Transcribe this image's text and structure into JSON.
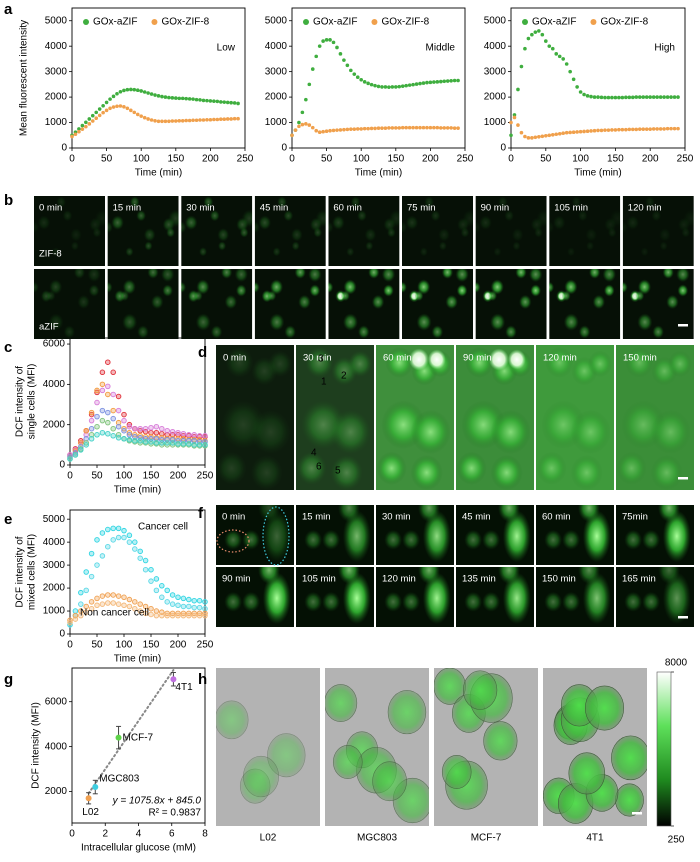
{
  "panel_letters": [
    "a",
    "b",
    "c",
    "d",
    "e",
    "f",
    "g",
    "h"
  ],
  "chart_data": [
    {
      "type": "scatter",
      "marker": "filled",
      "legend": "top",
      "annotation": "Low",
      "ylabel": [
        "Mean fluorescent intensity"
      ],
      "xlabel": "Time (min)",
      "xlim": [
        0,
        250
      ],
      "ylim": [
        0,
        5500
      ],
      "xticks": [
        0,
        50,
        100,
        150,
        200,
        250
      ],
      "yticks": [
        0,
        1000,
        2000,
        3000,
        4000,
        5000
      ],
      "x": [
        0,
        5,
        10,
        15,
        20,
        25,
        30,
        35,
        40,
        45,
        50,
        55,
        60,
        65,
        70,
        75,
        80,
        85,
        90,
        95,
        100,
        105,
        110,
        115,
        120,
        125,
        130,
        135,
        140,
        145,
        150,
        155,
        160,
        165,
        170,
        175,
        180,
        185,
        190,
        195,
        200,
        205,
        210,
        215,
        220,
        225,
        230,
        235,
        240
      ],
      "series": [
        {
          "name": "GOx-aZIF",
          "color": "#3fae3f",
          "values": [
            500,
            620,
            750,
            880,
            1010,
            1140,
            1270,
            1400,
            1530,
            1660,
            1790,
            1920,
            2030,
            2130,
            2210,
            2260,
            2290,
            2300,
            2290,
            2270,
            2240,
            2200,
            2160,
            2120,
            2080,
            2050,
            2020,
            2000,
            1980,
            1970,
            1960,
            1950,
            1950,
            1940,
            1930,
            1920,
            1900,
            1890,
            1870,
            1860,
            1850,
            1840,
            1830,
            1810,
            1800,
            1790,
            1780,
            1770,
            1750
          ]
        },
        {
          "name": "GOx-ZIF-8",
          "color": "#f0a04c",
          "values": [
            450,
            540,
            640,
            740,
            840,
            950,
            1060,
            1170,
            1280,
            1390,
            1480,
            1560,
            1610,
            1640,
            1650,
            1620,
            1560,
            1480,
            1400,
            1320,
            1250,
            1190,
            1140,
            1100,
            1070,
            1050,
            1050,
            1050,
            1050,
            1060,
            1060,
            1070,
            1070,
            1080,
            1080,
            1090,
            1090,
            1100,
            1100,
            1110,
            1110,
            1120,
            1120,
            1130,
            1130,
            1140,
            1140,
            1150,
            1150
          ]
        }
      ]
    },
    {
      "type": "scatter",
      "marker": "filled",
      "legend": "top",
      "annotation": "Middle",
      "xlabel": "Time (min)",
      "xlim": [
        0,
        250
      ],
      "ylim": [
        0,
        5500
      ],
      "xticks": [
        0,
        50,
        100,
        150,
        200,
        250
      ],
      "yticks": [
        0,
        1000,
        2000,
        3000,
        4000,
        5000
      ],
      "x": [
        0,
        5,
        10,
        15,
        20,
        25,
        30,
        35,
        40,
        45,
        50,
        55,
        60,
        65,
        70,
        75,
        80,
        85,
        90,
        95,
        100,
        105,
        110,
        115,
        120,
        125,
        130,
        135,
        140,
        145,
        150,
        155,
        160,
        165,
        170,
        175,
        180,
        185,
        190,
        195,
        200,
        205,
        210,
        215,
        220,
        225,
        230,
        235,
        240
      ],
      "series": [
        {
          "name": "GOx-aZIF",
          "color": "#3fae3f",
          "values": [
            500,
            700,
            1000,
            1400,
            1900,
            2500,
            3100,
            3600,
            4000,
            4200,
            4250,
            4250,
            4150,
            3950,
            3700,
            3450,
            3250,
            3050,
            2900,
            2780,
            2680,
            2600,
            2540,
            2490,
            2450,
            2420,
            2400,
            2400,
            2390,
            2400,
            2400,
            2410,
            2430,
            2450,
            2470,
            2490,
            2510,
            2530,
            2550,
            2570,
            2580,
            2590,
            2600,
            2610,
            2620,
            2630,
            2640,
            2650,
            2650
          ]
        },
        {
          "name": "GOx-ZIF-8",
          "color": "#f0a04c",
          "values": [
            500,
            700,
            850,
            920,
            950,
            900,
            800,
            680,
            620,
            640,
            660,
            680,
            690,
            700,
            710,
            720,
            730,
            740,
            740,
            750,
            750,
            760,
            760,
            770,
            770,
            780,
            780,
            780,
            790,
            790,
            790,
            790,
            800,
            800,
            800,
            800,
            800,
            800,
            800,
            800,
            800,
            800,
            800,
            790,
            790,
            790,
            790,
            780,
            780
          ]
        }
      ]
    },
    {
      "type": "scatter",
      "marker": "filled",
      "legend": "top",
      "annotation": "High",
      "xlabel": "Time (min)",
      "xlim": [
        0,
        250
      ],
      "ylim": [
        0,
        5500
      ],
      "xticks": [
        0,
        50,
        100,
        150,
        200,
        250
      ],
      "yticks": [
        0,
        1000,
        2000,
        3000,
        4000,
        5000
      ],
      "x": [
        0,
        5,
        10,
        15,
        20,
        25,
        30,
        35,
        40,
        45,
        50,
        55,
        60,
        65,
        70,
        75,
        80,
        85,
        90,
        95,
        100,
        105,
        110,
        115,
        120,
        125,
        130,
        135,
        140,
        145,
        150,
        155,
        160,
        165,
        170,
        175,
        180,
        185,
        190,
        195,
        200,
        205,
        210,
        215,
        220,
        225,
        230,
        235,
        240
      ],
      "series": [
        {
          "name": "GOx-aZIF",
          "color": "#3fae3f",
          "values": [
            500,
            1300,
            2300,
            3200,
            3900,
            4300,
            4450,
            4550,
            4600,
            4450,
            4200,
            4000,
            3900,
            3700,
            3600,
            3500,
            3300,
            3000,
            2700,
            2400,
            2200,
            2100,
            2050,
            2020,
            2000,
            2000,
            1990,
            1980,
            1980,
            1980,
            1980,
            1980,
            1980,
            1990,
            1990,
            1990,
            2000,
            2000,
            2000,
            2000,
            2000,
            2000,
            2000,
            2000,
            2000,
            2000,
            2000,
            2000,
            2000
          ]
        },
        {
          "name": "GOx-ZIF-8",
          "color": "#f0a04c",
          "values": [
            1000,
            1200,
            900,
            600,
            450,
            400,
            400,
            420,
            440,
            460,
            480,
            500,
            520,
            540,
            560,
            580,
            600,
            610,
            620,
            630,
            640,
            650,
            660,
            670,
            680,
            690,
            690,
            700,
            700,
            710,
            710,
            720,
            720,
            720,
            730,
            730,
            730,
            740,
            740,
            740,
            740,
            750,
            750,
            750,
            750,
            760,
            760,
            760,
            760
          ]
        }
      ]
    },
    {
      "type": "scatter",
      "marker": "open",
      "ylabel": [
        "DCF intensity of",
        "single cells (MFI)"
      ],
      "xlabel": "Time (min)",
      "xlim": [
        0,
        250
      ],
      "ylim": [
        0,
        6300
      ],
      "xticks": [
        0,
        50,
        100,
        150,
        200,
        250
      ],
      "yticks": [
        0,
        2000,
        4000,
        6000
      ],
      "x": [
        0,
        10,
        20,
        30,
        40,
        50,
        60,
        70,
        80,
        90,
        100,
        110,
        120,
        130,
        140,
        150,
        160,
        170,
        180,
        190,
        200,
        210,
        220,
        230,
        240,
        250
      ],
      "series": [
        {
          "color": "#e0303a",
          "values": [
            500,
            800,
            1200,
            1700,
            2500,
            3600,
            4600,
            5100,
            4600,
            3400,
            2500,
            2000,
            1800,
            1700,
            1650,
            1600,
            1600,
            1550,
            1500,
            1500,
            1500,
            1450,
            1450,
            1400,
            1400,
            1400
          ]
        },
        {
          "color": "#d77ad8",
          "values": [
            500,
            750,
            1100,
            1500,
            2200,
            3100,
            3700,
            3900,
            3500,
            2700,
            2200,
            1900,
            1800,
            1800,
            1800,
            1850,
            1900,
            1800,
            1700,
            1650,
            1600,
            1550,
            1500,
            1500,
            1450,
            1450
          ]
        },
        {
          "color": "#f29a3c",
          "values": [
            400,
            700,
            1100,
            1700,
            2600,
            3700,
            4000,
            3500,
            2700,
            2100,
            1800,
            1600,
            1500,
            1450,
            1400,
            1400,
            1350,
            1350,
            1300,
            1300,
            1300,
            1300,
            1250,
            1250,
            1250,
            1200
          ]
        },
        {
          "color": "#7a8fe0",
          "values": [
            400,
            600,
            900,
            1300,
            1800,
            2400,
            2700,
            2600,
            2300,
            1900,
            1700,
            1500,
            1400,
            1350,
            1300,
            1300,
            1300,
            1250,
            1250,
            1250,
            1200,
            1200,
            1200,
            1200,
            1150,
            1150
          ]
        },
        {
          "color": "#7fc27a",
          "values": [
            300,
            500,
            800,
            1100,
            1500,
            1900,
            2200,
            2100,
            1800,
            1500,
            1300,
            1200,
            1150,
            1100,
            1100,
            1050,
            1050,
            1000,
            1000,
            1000,
            1000,
            1000,
            1000,
            950,
            950,
            950
          ]
        },
        {
          "color": "#41d1c8",
          "values": [
            300,
            500,
            750,
            1000,
            1300,
            1500,
            1600,
            1550,
            1450,
            1350,
            1300,
            1250,
            1200,
            1200,
            1150,
            1150,
            1100,
            1100,
            1100,
            1100,
            1050,
            1050,
            1050,
            1000,
            1000,
            1000
          ]
        }
      ]
    },
    {
      "type": "scatter",
      "marker": "open",
      "ylabel": [
        "DCF intensity of",
        "mixed cells (MFI)"
      ],
      "xlabel": "Time (min)",
      "annotations": [
        {
          "text": "Cancer cell",
          "color": "#2ec8d8"
        },
        {
          "text": "Non cancer cell",
          "color": "#ee9c4e"
        }
      ],
      "xlim": [
        0,
        250
      ],
      "ylim": [
        0,
        5400
      ],
      "xticks": [
        0,
        50,
        100,
        150,
        200,
        250
      ],
      "yticks": [
        0,
        1000,
        2000,
        3000,
        4000,
        5000
      ],
      "x": [
        0,
        10,
        20,
        30,
        40,
        50,
        60,
        70,
        80,
        90,
        100,
        110,
        120,
        130,
        140,
        150,
        160,
        170,
        180,
        190,
        200,
        210,
        220,
        230,
        240,
        250
      ],
      "series": [
        {
          "color": "#2ed5e2",
          "values": [
            400,
            1000,
            1800,
            2700,
            3500,
            4100,
            4400,
            4550,
            4600,
            4600,
            4500,
            4300,
            4000,
            3600,
            3200,
            2800,
            2400,
            2100,
            1900,
            1700,
            1600,
            1550,
            1500,
            1450,
            1450,
            1400
          ]
        },
        {
          "color": "#5ad8e6",
          "values": [
            400,
            800,
            1300,
            1900,
            2500,
            3000,
            3400,
            3800,
            4100,
            4200,
            4200,
            4000,
            3700,
            3300,
            2800,
            2300,
            1900,
            1600,
            1400,
            1300,
            1250,
            1200,
            1200,
            1150,
            1150,
            1100
          ]
        },
        {
          "color": "#f0a050",
          "values": [
            600,
            800,
            1000,
            1200,
            1400,
            1550,
            1650,
            1700,
            1700,
            1650,
            1600,
            1500,
            1400,
            1300,
            1200,
            1100,
            1000,
            950,
            900,
            900,
            900,
            900,
            900,
            900,
            900,
            900
          ]
        },
        {
          "color": "#f4b878",
          "values": [
            500,
            650,
            800,
            950,
            1100,
            1250,
            1300,
            1350,
            1350,
            1300,
            1250,
            1200,
            1100,
            1000,
            900,
            850,
            800,
            800,
            800,
            800,
            800,
            800,
            800,
            800,
            800,
            800
          ]
        }
      ]
    },
    {
      "type": "errorbar",
      "ylabel": [
        "DCF intensity (MFI)"
      ],
      "xlabel": "Intracellular glucose (mM)",
      "xlim": [
        0,
        8
      ],
      "ylim": [
        600,
        7500
      ],
      "xticks": [
        0,
        2,
        4,
        6,
        8
      ],
      "yticks": [
        2000,
        4000,
        6000
      ],
      "categories": [
        "L02",
        "MGC803",
        "MCF-7",
        "4T1"
      ],
      "x": [
        1.0,
        1.4,
        2.8,
        6.1
      ],
      "values": [
        1700,
        2200,
        4400,
        7000
      ],
      "errors": [
        250,
        300,
        500,
        300
      ],
      "colors": [
        "#f0a050",
        "#3ecde0",
        "#5fd34a",
        "#c070e0"
      ],
      "fit": {
        "slope": 1075.8,
        "intercept": 845.0,
        "color": "#888888"
      },
      "equation": "y = 1075.8x + 845.0",
      "r_squared": "R² = 0.9837",
      "equation_color": "#7a2a8c"
    }
  ],
  "panel_b": {
    "time_labels": [
      "0 min",
      "15 min",
      "30 min",
      "45 min",
      "60 min",
      "75 min",
      "90 min",
      "105 min",
      "120 min"
    ],
    "row_labels": [
      "ZIF-8",
      "aZIF"
    ]
  },
  "panel_d": {
    "time_labels": [
      "0 min",
      "30 min",
      "60 min",
      "90 min",
      "120 min",
      "150 min"
    ],
    "cell_labels": [
      "1",
      "2",
      "3",
      "4",
      "5",
      "6"
    ]
  },
  "panel_f": {
    "time_labels": [
      "0 min",
      "15 min",
      "30 min",
      "45 min",
      "60 min",
      "75min",
      "90 min",
      "105 min",
      "120 min",
      "135 min",
      "150 min",
      "165 min"
    ]
  },
  "panel_h": {
    "cell_lines": [
      "L02",
      "MGC803",
      "MCF-7",
      "4T1"
    ],
    "colorbar_ticks": [
      8000,
      250
    ]
  }
}
